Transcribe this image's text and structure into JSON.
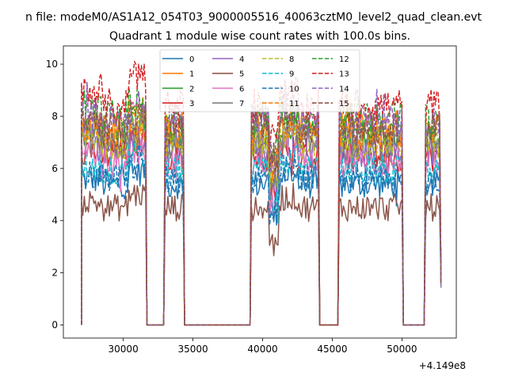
{
  "figure": {
    "suptitle": "n file: modeM0/AS1A12_054T03_9000005516_40063cztM0_level2_quad_clean.evt"
  },
  "chart_data": {
    "type": "line",
    "title": "Quadrant 1 module wise count rates with 100.0s bins.",
    "xlabel": "",
    "ylabel": "",
    "x_offset_label": "+4.149e8",
    "xlim": [
      25700,
      53900
    ],
    "ylim": [
      -0.5,
      10.7
    ],
    "xticks": [
      30000,
      35000,
      40000,
      45000,
      50000
    ],
    "xtick_labels": [
      "30000",
      "35000",
      "40000",
      "45000",
      "50000"
    ],
    "yticks": [
      0,
      2,
      4,
      6,
      8,
      10
    ],
    "ytick_labels": [
      "0",
      "2",
      "4",
      "6",
      "8",
      "10"
    ],
    "bin_seconds": 100,
    "segments": [
      {
        "start": 27000,
        "end": 31600
      },
      {
        "start": 33000,
        "end": 34300
      },
      {
        "start": 39200,
        "end": 44000
      },
      {
        "start": 45500,
        "end": 50000
      },
      {
        "start": 51700,
        "end": 52700
      }
    ],
    "legend": {
      "location": "upper center",
      "columns": 4
    },
    "series": [
      {
        "name": "0",
        "color": "#1f77b4",
        "dashed": false,
        "level": 5.4
      },
      {
        "name": "1",
        "color": "#ff7f0e",
        "dashed": false,
        "level": 7.6
      },
      {
        "name": "2",
        "color": "#2ca02c",
        "dashed": false,
        "level": 7.3
      },
      {
        "name": "3",
        "color": "#d62728",
        "dashed": false,
        "level": 6.5
      },
      {
        "name": "4",
        "color": "#9467bd",
        "dashed": false,
        "level": 6.7
      },
      {
        "name": "5",
        "color": "#8c564b",
        "dashed": false,
        "level": 4.5
      },
      {
        "name": "6",
        "color": "#e377c2",
        "dashed": false,
        "level": 6.2
      },
      {
        "name": "7",
        "color": "#7f7f7f",
        "dashed": false,
        "level": 6.9
      },
      {
        "name": "8",
        "color": "#bcbd22",
        "dashed": true,
        "level": 7.0
      },
      {
        "name": "9",
        "color": "#17becf",
        "dashed": true,
        "level": 5.9
      },
      {
        "name": "10",
        "color": "#1f77b4",
        "dashed": true,
        "level": 5.6
      },
      {
        "name": "11",
        "color": "#ff7f0e",
        "dashed": true,
        "level": 7.4
      },
      {
        "name": "12",
        "color": "#2ca02c",
        "dashed": true,
        "level": 8.0
      },
      {
        "name": "13",
        "color": "#d62728",
        "dashed": true,
        "level": 8.4
      },
      {
        "name": "14",
        "color": "#9467bd",
        "dashed": true,
        "level": 7.8
      },
      {
        "name": "15",
        "color": "#8c564b",
        "dashed": true,
        "level": 7.5
      }
    ]
  }
}
